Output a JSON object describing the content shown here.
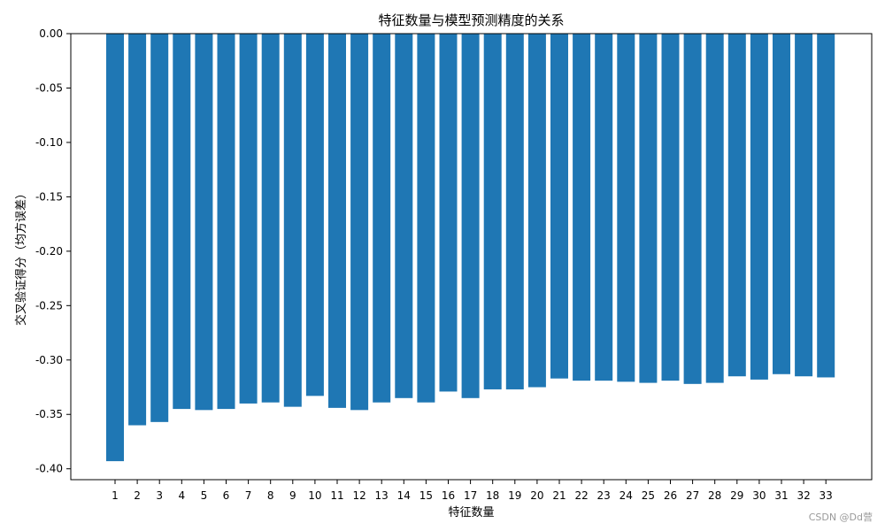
{
  "chart_data": {
    "type": "bar",
    "title": "特征数量与模型预测精度的关系",
    "xlabel": "特征数量",
    "ylabel": "交叉验证得分（均方误差）",
    "categories": [
      "1",
      "2",
      "3",
      "4",
      "5",
      "6",
      "7",
      "8",
      "9",
      "10",
      "11",
      "12",
      "13",
      "14",
      "15",
      "16",
      "17",
      "18",
      "19",
      "20",
      "21",
      "22",
      "23",
      "24",
      "25",
      "26",
      "27",
      "28",
      "29",
      "30",
      "31",
      "32",
      "33"
    ],
    "values": [
      -0.393,
      -0.36,
      -0.357,
      -0.345,
      -0.346,
      -0.345,
      -0.34,
      -0.339,
      -0.343,
      -0.333,
      -0.344,
      -0.346,
      -0.339,
      -0.335,
      -0.339,
      -0.329,
      -0.335,
      -0.327,
      -0.327,
      -0.325,
      -0.317,
      -0.319,
      -0.319,
      -0.32,
      -0.321,
      -0.319,
      -0.322,
      -0.321,
      -0.315,
      -0.318,
      -0.313,
      -0.315,
      -0.316
    ],
    "ylim": [
      -0.41,
      0.0
    ],
    "yticks": [
      0.0,
      -0.05,
      -0.1,
      -0.15,
      -0.2,
      -0.25,
      -0.3,
      -0.35,
      -0.4
    ],
    "ytick_labels": [
      "0.00",
      "-0.05",
      "-0.10",
      "-0.15",
      "-0.20",
      "-0.25",
      "-0.30",
      "-0.35",
      "-0.40"
    ],
    "grid": false,
    "legend": "none",
    "bar_color": "#1f77b4"
  },
  "watermark": "CSDN @Dd营"
}
